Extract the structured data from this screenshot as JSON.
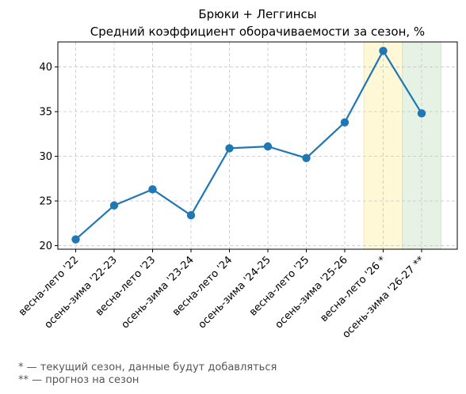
{
  "chart_data": {
    "type": "line",
    "title": "Брюки + Леггинсы",
    "subtitle": "Средний коэффициент оборачиваемости за сезон, %",
    "xlabel": "",
    "ylabel": "",
    "categories": [
      "весна-лето '22",
      "осень-зима '22-23",
      "весна-лето '23",
      "осень-зима '23-24",
      "весна-лето '24",
      "осень-зима '24-25",
      "весна-лето '25",
      "осень-зима '25-26",
      "весна-лето '26 *",
      "осень-зима '26-27 **"
    ],
    "series": [
      {
        "values": [
          20.7,
          24.5,
          26.3,
          23.4,
          30.9,
          31.1,
          29.8,
          33.8,
          41.8,
          34.8
        ]
      }
    ],
    "ylim": [
      19.6,
      42.8
    ],
    "yticks": [
      20,
      25,
      30,
      35,
      40
    ],
    "grid": true,
    "highlights": [
      {
        "category": "весна-лето '26 *",
        "color": "#fff8d6",
        "edge": "#f3e7a3"
      },
      {
        "category": "осень-зима '26-27 **",
        "color": "#e6f2e3",
        "edge": "#cfe5c9"
      }
    ],
    "line_color": "#1f77b4"
  },
  "footnotes": [
    "* — текущий сезон, данные будут добавляться",
    "** — прогноз на сезон"
  ]
}
